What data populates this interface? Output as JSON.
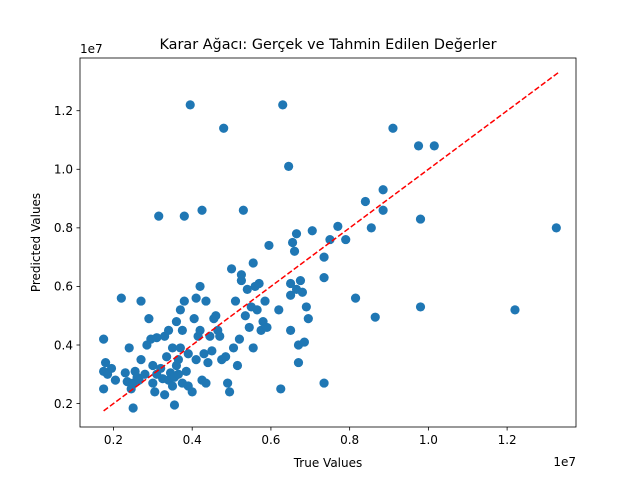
{
  "chart_data": {
    "type": "scatter",
    "title": "Karar Ağacı: Gerçek ve Tahmin Edilen Değerler",
    "xlabel": "True Values",
    "ylabel": "Predicted Values",
    "x_offset_label": "1e7",
    "y_offset_label": "1e7",
    "xlim": [
      1.15,
      13.75
    ],
    "ylim": [
      1.2,
      13.8
    ],
    "scale": 1000000.0,
    "x_ticks": [
      2,
      4,
      6,
      8,
      10,
      12
    ],
    "x_tick_labels": [
      "0.2",
      "0.4",
      "0.6",
      "0.8",
      "1.0",
      "1.2"
    ],
    "y_ticks": [
      2,
      4,
      6,
      8,
      10,
      12
    ],
    "y_tick_labels": [
      "0.2",
      "0.4",
      "0.6",
      "0.8",
      "1.0",
      "1.2"
    ],
    "grid": false,
    "point_color": "#1f77b4",
    "reference_line": {
      "from": [
        1.75,
        1.75
      ],
      "to": [
        13.3,
        13.3
      ],
      "color": "#ff0000",
      "style": "dashed"
    },
    "points": [
      [
        1.75,
        4.2
      ],
      [
        1.75,
        3.1
      ],
      [
        1.8,
        3.4
      ],
      [
        1.75,
        2.5
      ],
      [
        1.85,
        3.0
      ],
      [
        1.95,
        3.2
      ],
      [
        2.05,
        2.8
      ],
      [
        2.2,
        5.6
      ],
      [
        2.3,
        3.05
      ],
      [
        2.35,
        2.75
      ],
      [
        2.4,
        3.9
      ],
      [
        2.45,
        2.5
      ],
      [
        2.5,
        2.7
      ],
      [
        2.5,
        1.85
      ],
      [
        2.55,
        3.1
      ],
      [
        2.6,
        2.9
      ],
      [
        2.65,
        2.8
      ],
      [
        2.7,
        3.5
      ],
      [
        2.7,
        5.5
      ],
      [
        2.8,
        3.0
      ],
      [
        2.85,
        4.0
      ],
      [
        2.9,
        4.9
      ],
      [
        2.95,
        4.2
      ],
      [
        3.0,
        3.3
      ],
      [
        3.0,
        2.7
      ],
      [
        3.05,
        2.4
      ],
      [
        3.1,
        3.0
      ],
      [
        3.1,
        4.25
      ],
      [
        3.15,
        8.4
      ],
      [
        3.2,
        3.2
      ],
      [
        3.25,
        2.85
      ],
      [
        3.3,
        2.3
      ],
      [
        3.3,
        4.3
      ],
      [
        3.35,
        3.6
      ],
      [
        3.4,
        2.8
      ],
      [
        3.4,
        4.5
      ],
      [
        3.45,
        3.05
      ],
      [
        3.5,
        3.9
      ],
      [
        3.5,
        2.6
      ],
      [
        3.55,
        1.95
      ],
      [
        3.55,
        2.9
      ],
      [
        3.6,
        3.3
      ],
      [
        3.6,
        4.8
      ],
      [
        3.65,
        3.0
      ],
      [
        3.65,
        3.5
      ],
      [
        3.7,
        3.9
      ],
      [
        3.7,
        5.2
      ],
      [
        3.75,
        4.5
      ],
      [
        3.75,
        2.7
      ],
      [
        3.8,
        5.5
      ],
      [
        3.8,
        8.4
      ],
      [
        3.85,
        3.1
      ],
      [
        3.9,
        2.6
      ],
      [
        3.9,
        3.7
      ],
      [
        3.95,
        12.2
      ],
      [
        4.0,
        2.4
      ],
      [
        4.05,
        4.9
      ],
      [
        4.1,
        3.5
      ],
      [
        4.1,
        5.6
      ],
      [
        4.15,
        4.3
      ],
      [
        4.2,
        4.5
      ],
      [
        4.2,
        6.0
      ],
      [
        4.25,
        2.8
      ],
      [
        4.25,
        8.6
      ],
      [
        4.3,
        3.7
      ],
      [
        4.35,
        5.5
      ],
      [
        4.35,
        2.7
      ],
      [
        4.4,
        3.4
      ],
      [
        4.45,
        4.3
      ],
      [
        4.5,
        3.8
      ],
      [
        4.55,
        4.9
      ],
      [
        4.6,
        5.0
      ],
      [
        4.65,
        4.5
      ],
      [
        4.7,
        4.3
      ],
      [
        4.75,
        3.5
      ],
      [
        4.8,
        11.4
      ],
      [
        4.85,
        3.6
      ],
      [
        4.9,
        2.7
      ],
      [
        4.95,
        2.4
      ],
      [
        5.0,
        6.6
      ],
      [
        5.05,
        3.9
      ],
      [
        5.1,
        5.5
      ],
      [
        5.15,
        3.3
      ],
      [
        5.2,
        4.2
      ],
      [
        5.25,
        6.2
      ],
      [
        5.25,
        6.4
      ],
      [
        5.3,
        8.6
      ],
      [
        5.35,
        5.0
      ],
      [
        5.4,
        5.9
      ],
      [
        5.45,
        4.6
      ],
      [
        5.5,
        5.3
      ],
      [
        5.55,
        6.8
      ],
      [
        5.55,
        3.9
      ],
      [
        5.6,
        6.0
      ],
      [
        5.65,
        5.2
      ],
      [
        5.7,
        6.1
      ],
      [
        5.75,
        4.5
      ],
      [
        5.8,
        4.8
      ],
      [
        5.85,
        5.5
      ],
      [
        5.9,
        4.6
      ],
      [
        5.95,
        7.4
      ],
      [
        6.2,
        5.2
      ],
      [
        6.25,
        2.5
      ],
      [
        6.3,
        12.2
      ],
      [
        6.45,
        10.1
      ],
      [
        6.5,
        6.1
      ],
      [
        6.5,
        4.5
      ],
      [
        6.5,
        5.7
      ],
      [
        6.55,
        7.5
      ],
      [
        6.6,
        7.2
      ],
      [
        6.65,
        7.8
      ],
      [
        6.65,
        5.9
      ],
      [
        6.7,
        4.0
      ],
      [
        6.7,
        3.4
      ],
      [
        6.75,
        6.2
      ],
      [
        6.8,
        5.8
      ],
      [
        6.85,
        4.1
      ],
      [
        6.9,
        5.3
      ],
      [
        6.95,
        4.9
      ],
      [
        7.05,
        7.9
      ],
      [
        7.35,
        7.0
      ],
      [
        7.35,
        6.3
      ],
      [
        7.35,
        2.7
      ],
      [
        7.5,
        7.6
      ],
      [
        7.7,
        8.05
      ],
      [
        7.9,
        7.6
      ],
      [
        8.15,
        5.6
      ],
      [
        8.4,
        8.9
      ],
      [
        8.55,
        8.0
      ],
      [
        8.65,
        4.95
      ],
      [
        8.85,
        9.3
      ],
      [
        8.85,
        8.6
      ],
      [
        9.1,
        11.4
      ],
      [
        9.75,
        10.8
      ],
      [
        9.8,
        8.3
      ],
      [
        9.8,
        5.3
      ],
      [
        10.15,
        10.8
      ],
      [
        12.2,
        5.2
      ],
      [
        13.25,
        8.0
      ]
    ]
  }
}
